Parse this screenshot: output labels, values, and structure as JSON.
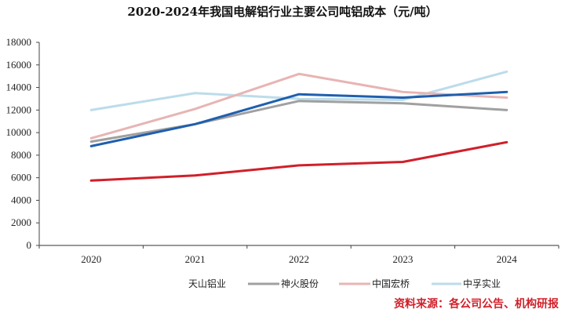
{
  "chart_data": {
    "type": "line",
    "title": "2020-2024年我国电解铝行业主要公司吨铝成本（元/吨）",
    "xlabel": "",
    "ylabel": "",
    "x": [
      "2020",
      "2021",
      "2022",
      "2023",
      "2024"
    ],
    "ylim": [
      0,
      18000
    ],
    "yticks": [
      0,
      2000,
      4000,
      6000,
      8000,
      10000,
      12000,
      14000,
      16000,
      18000
    ],
    "grid": false,
    "legend_position": "bottom",
    "series": [
      {
        "name": "",
        "color": "#d0202a",
        "values": [
          5750,
          6200,
          7100,
          7400,
          9150
        ]
      },
      {
        "name": "天山铝业",
        "color": "#1f5fae",
        "values": [
          8800,
          10750,
          13400,
          13100,
          13600
        ]
      },
      {
        "name": "神火股份",
        "color": "#a0a0a0",
        "values": [
          9200,
          10750,
          12800,
          12600,
          12000
        ]
      },
      {
        "name": "中国宏桥",
        "color": "#e8b4b4",
        "values": [
          9500,
          12100,
          15200,
          13600,
          13100
        ]
      },
      {
        "name": "中孚实业",
        "color": "#bcdcea",
        "values": [
          12000,
          13500,
          13000,
          12900,
          15400
        ]
      }
    ],
    "source": "资料来源：各公司公告、机构研报"
  }
}
